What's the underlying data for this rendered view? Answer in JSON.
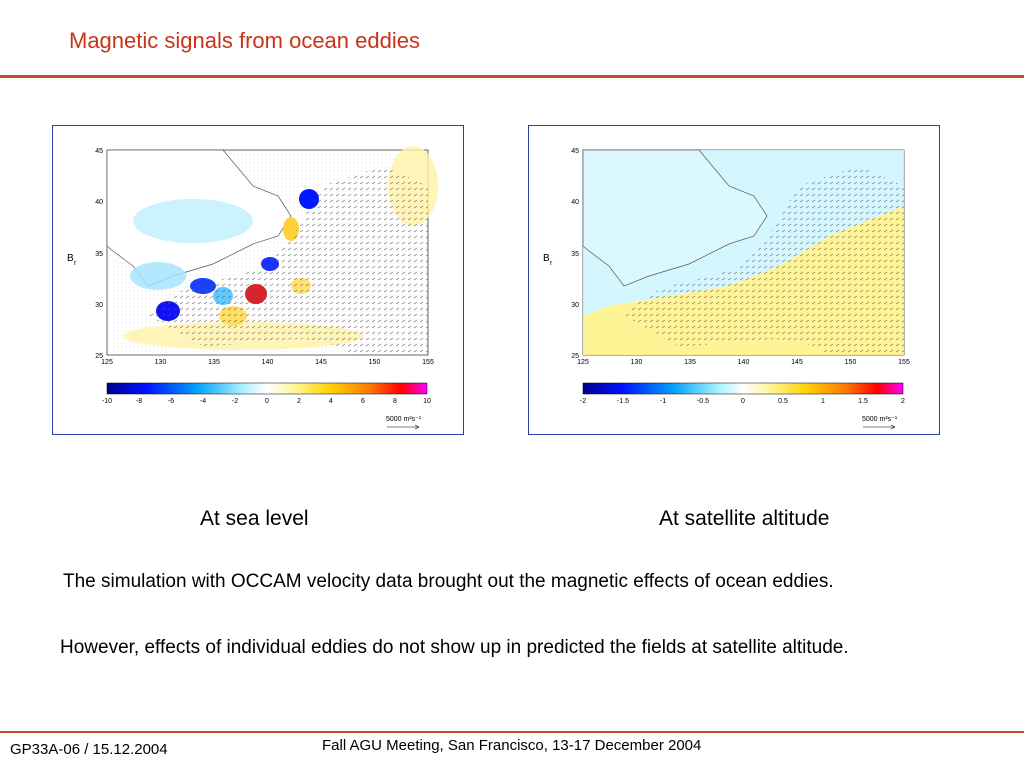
{
  "slide": {
    "title": "Magnetic signals from ocean eddies",
    "captions": [
      "At sea level",
      "At satellite altitude"
    ],
    "paragraphs": [
      "The simulation with OCCAM velocity data brought out the magnetic effects of ocean eddies.",
      "However, effects of individual eddies do not show up in predicted the fields at satellite altitude."
    ],
    "footer_left": "GP33A-06 / 15.12.2004",
    "footer_center": "Fall AGU Meeting, San Francisco, 13-17 December 2004"
  },
  "maps": [
    {
      "ylabel": "B",
      "ylabel_sub": "r",
      "x_ticks": [
        "125",
        "130",
        "135",
        "140",
        "145",
        "150",
        "155"
      ],
      "y_ticks": [
        "45",
        "40",
        "35",
        "30",
        "25"
      ],
      "colorbar_ticks": [
        "-10",
        "-8",
        "-6",
        "-4",
        "-2",
        "0",
        "2",
        "4",
        "6",
        "8",
        "10"
      ],
      "scale_label": "5000 m²s⁻¹"
    },
    {
      "ylabel": "B",
      "ylabel_sub": "r",
      "x_ticks": [
        "125",
        "130",
        "135",
        "140",
        "145",
        "150",
        "155"
      ],
      "y_ticks": [
        "45",
        "40",
        "35",
        "30",
        "25"
      ],
      "colorbar_ticks": [
        "-2",
        "-1.5",
        "-1",
        "-0.5",
        "0",
        "0.5",
        "1",
        "1.5",
        "2"
      ],
      "scale_label": "5000 m²s⁻¹"
    }
  ],
  "colors": {
    "title": "#c8331a",
    "rule": "#c44a2b",
    "panel_border": "#2a3fa5"
  }
}
